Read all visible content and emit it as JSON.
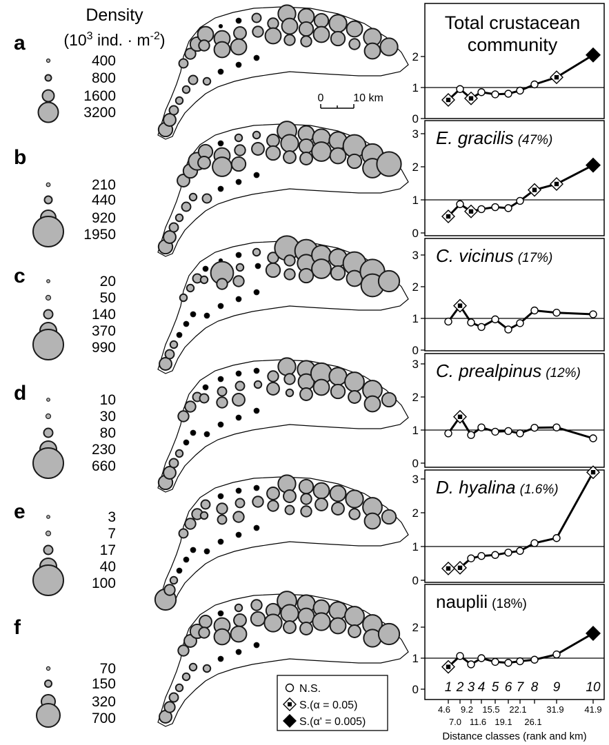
{
  "legend_header": {
    "title": "Density",
    "unit_prefix": "(10",
    "unit_exp": "3",
    "unit_mid": " ind. · m",
    "unit_exp2": "-2",
    "unit_suffix": ")"
  },
  "scale_bar": {
    "left_label": "0",
    "right_label": "10 km"
  },
  "key": {
    "ns_label": "N.S.",
    "s1_prefix": "S.(",
    "s1_alpha": "α = 0.05)",
    "s2_prefix": "S.(",
    "s2_alpha": "α' = 0.005)"
  },
  "x_axis": {
    "title": "Distance classes (rank and km)",
    "km_top": [
      "4.6",
      "9.2",
      "15.5",
      "22.1",
      "31.9",
      "41.9"
    ],
    "km_bottom": [
      "7.0",
      "11.6",
      "19.1",
      "26.1"
    ]
  },
  "colors": {
    "marker_fill": "#b4b4b4",
    "marker_stroke": "#1a1a1a",
    "axis": "#000000"
  },
  "panels": [
    {
      "letter": "a",
      "density_labels": [
        "400",
        "800",
        "1600",
        "3200"
      ]
    },
    {
      "letter": "b",
      "density_labels": [
        "210",
        "440",
        "920",
        "1950"
      ]
    },
    {
      "letter": "c",
      "density_labels": [
        "20",
        "50",
        "140",
        "370",
        "990"
      ]
    },
    {
      "letter": "d",
      "density_labels": [
        "10",
        "30",
        "80",
        "230",
        "660"
      ]
    },
    {
      "letter": "e",
      "density_labels": [
        "3",
        "7",
        "17",
        "40",
        "100"
      ]
    },
    {
      "letter": "f",
      "density_labels": [
        "70",
        "150",
        "320",
        "700"
      ]
    }
  ],
  "chart_data": [
    {
      "type": "line",
      "title": "Total crustacean community",
      "title2": "",
      "pct": "",
      "x": [
        1,
        2,
        3,
        4,
        5,
        6,
        7,
        8,
        9,
        10
      ],
      "ylim": [
        0,
        3
      ],
      "yticks": [
        0,
        1,
        2
      ],
      "series": [
        {
          "values": [
            0.6,
            0.95,
            0.65,
            0.85,
            0.78,
            0.8,
            0.9,
            1.1,
            1.33,
            2.05
          ],
          "sig": [
            "s",
            "n",
            "s",
            "n",
            "n",
            "n",
            "n",
            "n",
            "s",
            "ss"
          ]
        }
      ]
    },
    {
      "type": "line",
      "title": "E. gracilis",
      "pct": "(47%)",
      "x": [
        1,
        2,
        3,
        4,
        5,
        6,
        7,
        8,
        9,
        10
      ],
      "ylim": [
        0,
        3
      ],
      "yticks": [
        0,
        1,
        2,
        3
      ],
      "series": [
        {
          "values": [
            0.5,
            0.87,
            0.65,
            0.72,
            0.78,
            0.75,
            0.97,
            1.3,
            1.48,
            2.05
          ],
          "sig": [
            "s",
            "n",
            "s",
            "n",
            "n",
            "n",
            "n",
            "s",
            "s",
            "ss"
          ]
        }
      ]
    },
    {
      "type": "line",
      "title": "C. vicinus",
      "pct": "(17%)",
      "x": [
        1,
        2,
        3,
        4,
        5,
        6,
        7,
        8,
        9,
        10
      ],
      "ylim": [
        0,
        3
      ],
      "yticks": [
        0,
        1,
        2,
        3
      ],
      "series": [
        {
          "values": [
            0.9,
            1.4,
            0.87,
            0.73,
            0.97,
            0.65,
            0.85,
            1.25,
            1.18,
            1.13
          ],
          "sig": [
            "n",
            "s",
            "n",
            "n",
            "n",
            "n",
            "n",
            "n",
            "n",
            "n"
          ]
        }
      ]
    },
    {
      "type": "line",
      "title": "C. prealpinus",
      "pct": "(12%)",
      "x": [
        1,
        2,
        3,
        4,
        5,
        6,
        7,
        8,
        9,
        10
      ],
      "ylim": [
        0,
        3
      ],
      "yticks": [
        0,
        1,
        2,
        3
      ],
      "series": [
        {
          "values": [
            0.9,
            1.4,
            0.85,
            1.08,
            0.95,
            0.97,
            0.9,
            1.07,
            1.08,
            0.75
          ],
          "sig": [
            "n",
            "s",
            "n",
            "n",
            "n",
            "n",
            "n",
            "n",
            "n",
            "n"
          ]
        }
      ]
    },
    {
      "type": "line",
      "title": "D. hyalina",
      "pct": "(1.6%)",
      "x": [
        1,
        2,
        3,
        4,
        5,
        6,
        7,
        8,
        9,
        10
      ],
      "ylim": [
        0,
        3
      ],
      "yticks": [
        0,
        1,
        2,
        3
      ],
      "series": [
        {
          "values": [
            0.35,
            0.37,
            0.65,
            0.72,
            0.75,
            0.82,
            0.87,
            1.1,
            1.25,
            3.2
          ],
          "sig": [
            "s",
            "s",
            "n",
            "n",
            "n",
            "n",
            "n",
            "n",
            "n",
            "s"
          ]
        }
      ]
    },
    {
      "type": "line",
      "title": "nauplii",
      "pct": "(18%)",
      "x": [
        1,
        2,
        3,
        4,
        5,
        6,
        7,
        8,
        9,
        10
      ],
      "ylim": [
        0,
        3
      ],
      "yticks": [
        0,
        1,
        2
      ],
      "rank_labels": [
        "1",
        "2",
        "3",
        "4",
        "5",
        "6",
        "7",
        "8",
        "9",
        "10"
      ],
      "series": [
        {
          "values": [
            0.72,
            1.07,
            0.8,
            1.0,
            0.88,
            0.85,
            0.9,
            0.95,
            1.12,
            1.8
          ],
          "sig": [
            "s",
            "n",
            "n",
            "n",
            "n",
            "n",
            "n",
            "n",
            "n",
            "ss"
          ]
        }
      ]
    }
  ]
}
